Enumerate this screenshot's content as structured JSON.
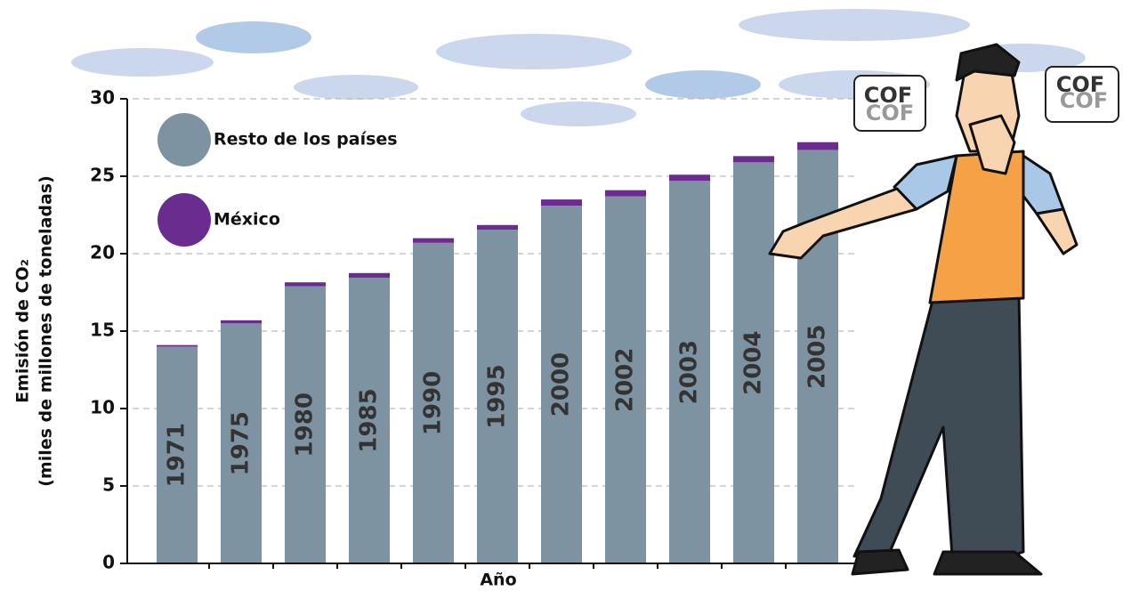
{
  "chart_data": {
    "type": "stacked_bar",
    "ylabel": [
      "Emisión de CO₂",
      "(miles de millones de toneladas)"
    ],
    "xlabel": "Año",
    "categories": [
      "1971",
      "1975",
      "1980",
      "1985",
      "1990",
      "1995",
      "2000",
      "2002",
      "2003",
      "2004",
      "2005"
    ],
    "series": [
      {
        "name": "Resto de los países",
        "color": "#7d93a1",
        "values": [
          14.0,
          15.5,
          17.9,
          18.45,
          20.7,
          21.55,
          23.1,
          23.7,
          24.7,
          25.9,
          26.7
        ]
      },
      {
        "name": "México",
        "color": "#6a2c8e",
        "values": [
          0.1,
          0.2,
          0.25,
          0.3,
          0.3,
          0.3,
          0.4,
          0.4,
          0.4,
          0.4,
          0.5
        ]
      }
    ],
    "ylim": [
      0,
      30
    ],
    "yticks": [
      0,
      5,
      10,
      15,
      20,
      25,
      30
    ],
    "grid": true,
    "annotations": [
      "COF",
      "COF",
      "COF",
      "COF"
    ]
  }
}
